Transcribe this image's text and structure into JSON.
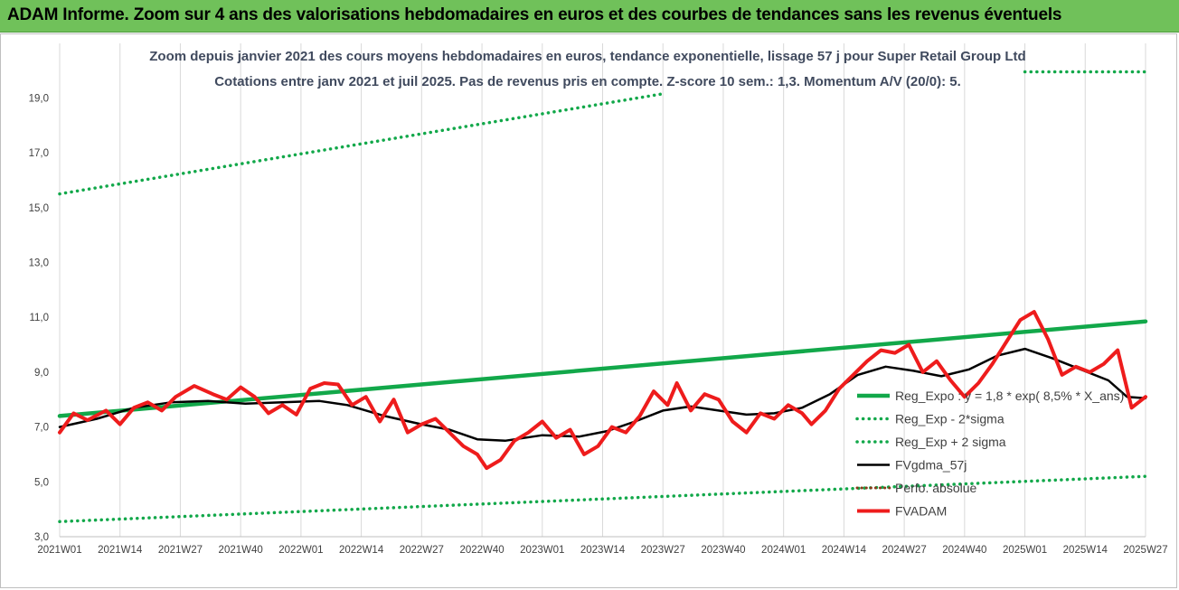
{
  "banner": {
    "title": "ADAM Informe. Zoom sur 4 ans des valorisations hebdomadaires en euros et des courbes de tendances sans les revenus éventuels"
  },
  "chart_data": {
    "type": "line",
    "title": "Zoom depuis janvier 2021 des cours moyens hebdomadaires en euros, tendance exponentielle, lissage 57 j pour Super Retail Group Ltd",
    "subtitle": "Cotations entre janv 2021 et juil 2025. Pas de revenus pris en compte. Z-score 10 sem.: 1,3. Momentum A/V (20/0): 5.",
    "ylim": [
      3.0,
      20.0
    ],
    "yticks": [
      "3,0",
      "5,0",
      "7,0",
      "9,0",
      "11,0",
      "13,0",
      "15,0",
      "17,0",
      "19,0"
    ],
    "ytick_values": [
      3,
      5,
      7,
      9,
      11,
      13,
      15,
      17,
      19
    ],
    "xlim": [
      0,
      234
    ],
    "xticks": [
      "2021W01",
      "2021W14",
      "2021W27",
      "2021W40",
      "2022W01",
      "2022W14",
      "2022W27",
      "2022W40",
      "2023W01",
      "2023W14",
      "2023W27",
      "2023W40",
      "2024W01",
      "2024W14",
      "2024W27",
      "2024W40",
      "2025W01",
      "2025W14",
      "2025W27"
    ],
    "grid": "vertical",
    "legend_position": "right",
    "colors": {
      "reg_expo": "#12a84a",
      "sigma": "#12a84a",
      "fvgdma": "#000000",
      "perfo": "#8b3a1a",
      "fvadam": "#ee1c1c"
    },
    "series": [
      {
        "name": "Reg_Expo : y = 1,8 * exp( 8,5% * X_ans)",
        "key": "reg_expo",
        "style": "solid",
        "points": [
          [
            0,
            7.4
          ],
          [
            234,
            10.85
          ]
        ]
      },
      {
        "name": "Reg_Exp - 2*sigma",
        "key": "minus2",
        "style": "dotted",
        "points": [
          [
            0,
            3.55
          ],
          [
            234,
            5.2
          ]
        ]
      },
      {
        "name": "Reg_Exp + 2 sigma",
        "key": "plus2",
        "style": "dotted",
        "points": [
          [
            0,
            15.5
          ],
          [
            130,
            19.15
          ]
        ],
        "points2": [
          [
            208,
            19.95
          ],
          [
            234,
            19.95
          ]
        ]
      },
      {
        "name": "FVgdma_57j",
        "key": "fvgdma",
        "style": "solid",
        "points": [
          [
            0,
            7.0
          ],
          [
            8,
            7.3
          ],
          [
            16,
            7.7
          ],
          [
            24,
            7.9
          ],
          [
            32,
            7.95
          ],
          [
            40,
            7.85
          ],
          [
            48,
            7.9
          ],
          [
            56,
            7.95
          ],
          [
            62,
            7.8
          ],
          [
            70,
            7.4
          ],
          [
            78,
            7.1
          ],
          [
            84,
            6.9
          ],
          [
            90,
            6.55
          ],
          [
            96,
            6.5
          ],
          [
            104,
            6.7
          ],
          [
            112,
            6.65
          ],
          [
            118,
            6.85
          ],
          [
            124,
            7.2
          ],
          [
            130,
            7.6
          ],
          [
            136,
            7.75
          ],
          [
            142,
            7.6
          ],
          [
            148,
            7.45
          ],
          [
            154,
            7.5
          ],
          [
            160,
            7.7
          ],
          [
            166,
            8.2
          ],
          [
            172,
            8.9
          ],
          [
            178,
            9.2
          ],
          [
            184,
            9.05
          ],
          [
            190,
            8.85
          ],
          [
            196,
            9.1
          ],
          [
            202,
            9.6
          ],
          [
            208,
            9.85
          ],
          [
            214,
            9.5
          ],
          [
            220,
            9.1
          ],
          [
            226,
            8.7
          ],
          [
            230,
            8.1
          ],
          [
            234,
            8.05
          ]
        ]
      },
      {
        "name": "Perfo. absolue",
        "key": "perfo",
        "style": "dotted",
        "points": []
      },
      {
        "name": "FVADAM",
        "key": "fvadam",
        "style": "solid",
        "points": [
          [
            0,
            6.8
          ],
          [
            3,
            7.5
          ],
          [
            6,
            7.25
          ],
          [
            10,
            7.6
          ],
          [
            13,
            7.1
          ],
          [
            16,
            7.7
          ],
          [
            19,
            7.9
          ],
          [
            22,
            7.6
          ],
          [
            25,
            8.1
          ],
          [
            29,
            8.5
          ],
          [
            33,
            8.2
          ],
          [
            36,
            8.0
          ],
          [
            39,
            8.45
          ],
          [
            42,
            8.1
          ],
          [
            45,
            7.5
          ],
          [
            48,
            7.8
          ],
          [
            51,
            7.45
          ],
          [
            54,
            8.4
          ],
          [
            57,
            8.6
          ],
          [
            60,
            8.55
          ],
          [
            63,
            7.8
          ],
          [
            66,
            8.1
          ],
          [
            69,
            7.2
          ],
          [
            72,
            8.0
          ],
          [
            75,
            6.8
          ],
          [
            78,
            7.1
          ],
          [
            81,
            7.3
          ],
          [
            84,
            6.8
          ],
          [
            87,
            6.3
          ],
          [
            90,
            6.0
          ],
          [
            92,
            5.5
          ],
          [
            95,
            5.8
          ],
          [
            98,
            6.5
          ],
          [
            101,
            6.8
          ],
          [
            104,
            7.2
          ],
          [
            107,
            6.6
          ],
          [
            110,
            6.9
          ],
          [
            113,
            6.0
          ],
          [
            116,
            6.3
          ],
          [
            119,
            7.0
          ],
          [
            122,
            6.8
          ],
          [
            125,
            7.4
          ],
          [
            128,
            8.3
          ],
          [
            131,
            7.8
          ],
          [
            133,
            8.6
          ],
          [
            136,
            7.6
          ],
          [
            139,
            8.2
          ],
          [
            142,
            8.0
          ],
          [
            145,
            7.2
          ],
          [
            148,
            6.8
          ],
          [
            151,
            7.5
          ],
          [
            154,
            7.3
          ],
          [
            157,
            7.8
          ],
          [
            160,
            7.5
          ],
          [
            162,
            7.1
          ],
          [
            165,
            7.6
          ],
          [
            168,
            8.4
          ],
          [
            171,
            8.9
          ],
          [
            174,
            9.4
          ],
          [
            177,
            9.8
          ],
          [
            180,
            9.7
          ],
          [
            183,
            10.0
          ],
          [
            186,
            9.0
          ],
          [
            189,
            9.4
          ],
          [
            192,
            8.7
          ],
          [
            195,
            8.1
          ],
          [
            198,
            8.6
          ],
          [
            201,
            9.3
          ],
          [
            204,
            10.1
          ],
          [
            207,
            10.9
          ],
          [
            210,
            11.2
          ],
          [
            213,
            10.2
          ],
          [
            216,
            8.9
          ],
          [
            219,
            9.2
          ],
          [
            222,
            9.0
          ],
          [
            225,
            9.3
          ],
          [
            228,
            9.8
          ],
          [
            231,
            7.7
          ],
          [
            234,
            8.1
          ]
        ]
      }
    ]
  }
}
